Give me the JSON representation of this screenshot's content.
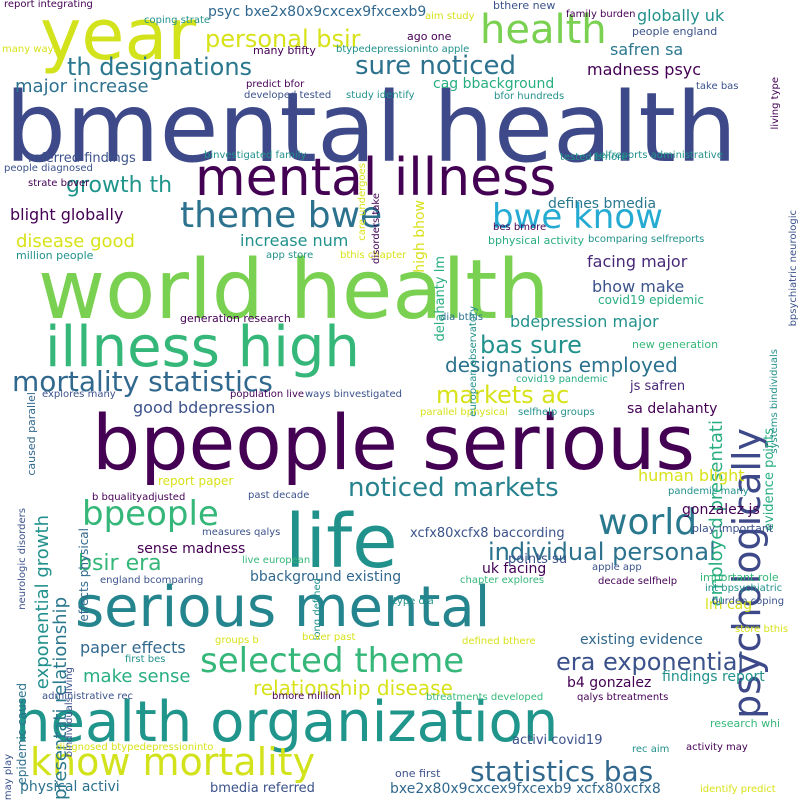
{
  "palette": {
    "dark_purple": "#440154",
    "indigo": "#3b518b",
    "blue": "#2c728e",
    "teal": "#21918c",
    "green": "#28ae80",
    "lime": "#5ec962",
    "light_green": "#addc30",
    "yellow": "#d8e219"
  },
  "words": [
    {
      "text": "bmental health",
      "color": "#3e4989"
    },
    {
      "text": "world health",
      "color": "#7ad151"
    },
    {
      "text": "bpeople serious",
      "color": "#440154"
    },
    {
      "text": "serious mental",
      "color": "#25858e"
    },
    {
      "text": "health organization",
      "color": "#1f958b"
    },
    {
      "text": "life",
      "color": "#21918c"
    },
    {
      "text": "year",
      "color": "#d2e21b"
    },
    {
      "text": "mental illness",
      "color": "#440154"
    },
    {
      "text": "illness high",
      "color": "#35b779"
    },
    {
      "text": "psychologically",
      "color": "#3e4989"
    },
    {
      "text": "health",
      "color": "#7ad151"
    },
    {
      "text": "theme bwe",
      "color": "#2c728e"
    },
    {
      "text": "bwe know",
      "color": "#25abd2"
    },
    {
      "text": "mortality statistics",
      "color": "#31688e"
    },
    {
      "text": "know mortality",
      "color": "#d2e21b"
    },
    {
      "text": "selected theme",
      "color": "#35b779"
    },
    {
      "text": "world",
      "color": "#2a788e"
    },
    {
      "text": "bpeople",
      "color": "#35b779"
    },
    {
      "text": "noticed markets",
      "color": "#26828e"
    },
    {
      "text": "individual personal",
      "color": "#2c728e"
    },
    {
      "text": "statistics bas",
      "color": "#31688e"
    },
    {
      "text": "era exponential",
      "color": "#3b528b"
    },
    {
      "text": "th designations",
      "color": "#2a788e"
    },
    {
      "text": "personal bsir",
      "color": "#d8e219"
    },
    {
      "text": "sure noticed",
      "color": "#2c728e"
    },
    {
      "text": "growth th",
      "color": "#1f958b"
    },
    {
      "text": "markets ac",
      "color": "#d8e219"
    },
    {
      "text": "bas sure",
      "color": "#21918c"
    },
    {
      "text": "designations employed",
      "color": "#2c728e"
    },
    {
      "text": "bsir era",
      "color": "#35b779"
    },
    {
      "text": "exponential growth",
      "color": "#21918c"
    },
    {
      "text": "relationship disease",
      "color": "#d8e219"
    },
    {
      "text": "employed presentati",
      "color": "#28ae80"
    },
    {
      "text": "presentati relationship",
      "color": "#2a788e"
    },
    {
      "text": "major increase",
      "color": "#2c728e"
    },
    {
      "text": "blight globally",
      "color": "#440154"
    },
    {
      "text": "disease good",
      "color": "#d8e219"
    },
    {
      "text": "increase num",
      "color": "#21918c"
    },
    {
      "text": "defines bmedia",
      "color": "#2a788e"
    },
    {
      "text": "facing major",
      "color": "#482878"
    },
    {
      "text": "bhow make",
      "color": "#3b528b"
    },
    {
      "text": "bdepression major",
      "color": "#21918c"
    },
    {
      "text": "good bdepression",
      "color": "#3b528b"
    },
    {
      "text": "human blight",
      "color": "#d8e219"
    },
    {
      "text": "sense madness",
      "color": "#440154"
    },
    {
      "text": "make sense",
      "color": "#28ae80"
    },
    {
      "text": "paper effects",
      "color": "#31688e"
    },
    {
      "text": "findings report",
      "color": "#21918c"
    },
    {
      "text": "existing evidence",
      "color": "#31688e"
    },
    {
      "text": "madness psyc",
      "color": "#440154"
    },
    {
      "text": "globally uk",
      "color": "#21918c"
    },
    {
      "text": "safren sa",
      "color": "#2a788e"
    },
    {
      "text": "cag bbackground",
      "color": "#28ae80"
    },
    {
      "text": "psyc bxe2x80x9cxcex9fxcexb9",
      "color": "#31688e"
    },
    {
      "text": "xcfx80xcfx8 baccording",
      "color": "#3b528b"
    },
    {
      "text": "bxe2x80x9cxcex9fxcexb9 xcfx80xcfx8",
      "color": "#31688e"
    },
    {
      "text": "bbackground existing",
      "color": "#31688e"
    },
    {
      "text": "bmedia referred",
      "color": "#3b528b"
    },
    {
      "text": "referred findings",
      "color": "#3b528b"
    },
    {
      "text": "high bhow",
      "color": "#d8e219"
    },
    {
      "text": "delahanty lm",
      "color": "#28ae80"
    },
    {
      "text": "sa delahanty",
      "color": "#440154"
    },
    {
      "text": "js safren",
      "color": "#482878"
    },
    {
      "text": "gonzalez js",
      "color": "#440154"
    },
    {
      "text": "b4 gonzalez",
      "color": "#440154"
    },
    {
      "text": "uk facing",
      "color": "#440154"
    },
    {
      "text": "lm cag",
      "color": "#d8e219"
    },
    {
      "text": "points su",
      "color": "#3b528b"
    },
    {
      "text": "evidence points",
      "color": "#28ae80"
    },
    {
      "text": "physical activi",
      "color": "#2c728e"
    },
    {
      "text": "activi covid19",
      "color": "#3b528b"
    },
    {
      "text": "one first",
      "color": "#3b528b"
    },
    {
      "text": "report paper",
      "color": "#d8e219"
    },
    {
      "text": "effects physical",
      "color": "#31688e"
    },
    {
      "text": "epidemic caused",
      "color": "#2c728e"
    },
    {
      "text": "caused parallel",
      "color": "#31688e"
    },
    {
      "text": "covid19 epidemic",
      "color": "#28ae80"
    },
    {
      "text": "bphysical activity",
      "color": "#28ae80"
    },
    {
      "text": "bcomparing selfreports",
      "color": "#21918c"
    },
    {
      "text": "generation research",
      "color": "#440154"
    },
    {
      "text": "new generation",
      "color": "#35b779"
    },
    {
      "text": "covid19 pandemic",
      "color": "#28ae80"
    },
    {
      "text": "important role",
      "color": "#35b779"
    },
    {
      "text": "research whi",
      "color": "#35b779"
    },
    {
      "text": "play important",
      "color": "#3b528b"
    },
    {
      "text": "pandemic many",
      "color": "#21918c"
    },
    {
      "text": "ago one",
      "color": "#440154"
    },
    {
      "text": "people england",
      "color": "#3b528b"
    },
    {
      "text": "bthere new",
      "color": "#3b528b"
    },
    {
      "text": "many bfifty",
      "color": "#440154"
    },
    {
      "text": "btypedepressioninto apple",
      "color": "#21918c"
    },
    {
      "text": "bfor hundreds",
      "color": "#21918c"
    },
    {
      "text": "million people",
      "color": "#21918c"
    },
    {
      "text": "app store",
      "color": "#21918c"
    },
    {
      "text": "bthis chapter",
      "color": "#d8e219"
    },
    {
      "text": "dia bthis",
      "color": "#2c728e"
    },
    {
      "text": "explores many",
      "color": "#3b528b"
    },
    {
      "text": "population live",
      "color": "#440154"
    },
    {
      "text": "ways binvestigated",
      "color": "#3b528b"
    },
    {
      "text": "parallel bphysical",
      "color": "#d8e219"
    },
    {
      "text": "selfhelp groups",
      "color": "#21918c"
    },
    {
      "text": "b bqualityadjusted",
      "color": "#440154"
    },
    {
      "text": "past decade",
      "color": "#3b528b"
    },
    {
      "text": "measures qalys",
      "color": "#3b528b"
    },
    {
      "text": "live european",
      "color": "#35b779"
    },
    {
      "text": "england bcomparing",
      "color": "#3b528b"
    },
    {
      "text": "long defined",
      "color": "#21918c"
    },
    {
      "text": "chapter explores",
      "color": "#35b779"
    },
    {
      "text": "decade selfhelp",
      "color": "#440154"
    },
    {
      "text": "apple app",
      "color": "#3b528b"
    },
    {
      "text": "int bpsychiatric",
      "color": "#21918c"
    },
    {
      "text": "burden coping",
      "color": "#3b528b"
    },
    {
      "text": "type dia",
      "color": "#21918c"
    },
    {
      "text": "store bthis",
      "color": "#d8e219"
    },
    {
      "text": "groups b",
      "color": "#d8e219"
    },
    {
      "text": "bover past",
      "color": "#d8e219"
    },
    {
      "text": "defined bthere",
      "color": "#d8e219"
    },
    {
      "text": "first bes",
      "color": "#21918c"
    },
    {
      "text": "bmore million",
      "color": "#440154"
    },
    {
      "text": "administrative rec",
      "color": "#3b528b"
    },
    {
      "text": "diagnosed btypedepressioninto",
      "color": "#d8e219"
    },
    {
      "text": "btreatments developed",
      "color": "#35b779"
    },
    {
      "text": "qalys btreatments",
      "color": "#440154"
    },
    {
      "text": "activity may",
      "color": "#440154"
    },
    {
      "text": "rec aim",
      "color": "#21918c"
    },
    {
      "text": "identify predict",
      "color": "#d8e219"
    },
    {
      "text": "may play",
      "color": "#3b528b"
    },
    {
      "text": "report integrating",
      "color": "#440154"
    },
    {
      "text": "coping strate",
      "color": "#21918c"
    },
    {
      "text": "aim study",
      "color": "#d8e219"
    },
    {
      "text": "family burden",
      "color": "#440154"
    },
    {
      "text": "living type",
      "color": "#440154"
    },
    {
      "text": "many ways",
      "color": "#d8e219"
    },
    {
      "text": "predict bfor",
      "color": "#440154"
    },
    {
      "text": "developed tested",
      "color": "#3b528b"
    },
    {
      "text": "study identify",
      "color": "#21918c"
    },
    {
      "text": "take bas",
      "color": "#3b528b"
    },
    {
      "text": "bpsychiatric neurologic",
      "color": "#3b528b"
    },
    {
      "text": "care undergoes",
      "color": "#d8e219"
    },
    {
      "text": "disorders take",
      "color": "#440154"
    },
    {
      "text": "tested bmore",
      "color": "#21918c"
    },
    {
      "text": "selfreports administrative",
      "color": "#21918c"
    },
    {
      "text": "binvestigated family",
      "color": "#21918c"
    },
    {
      "text": "people diagnosed",
      "color": "#3b528b"
    },
    {
      "text": "strate bover",
      "color": "#440154"
    },
    {
      "text": "bes bmore",
      "color": "#440154"
    },
    {
      "text": "european observatory",
      "color": "#21918c"
    },
    {
      "text": "systems bindividuals",
      "color": "#21918c"
    },
    {
      "text": "bindividuals living",
      "color": "#3b528b"
    },
    {
      "text": "neurologic disorders",
      "color": "#3b528b"
    }
  ]
}
